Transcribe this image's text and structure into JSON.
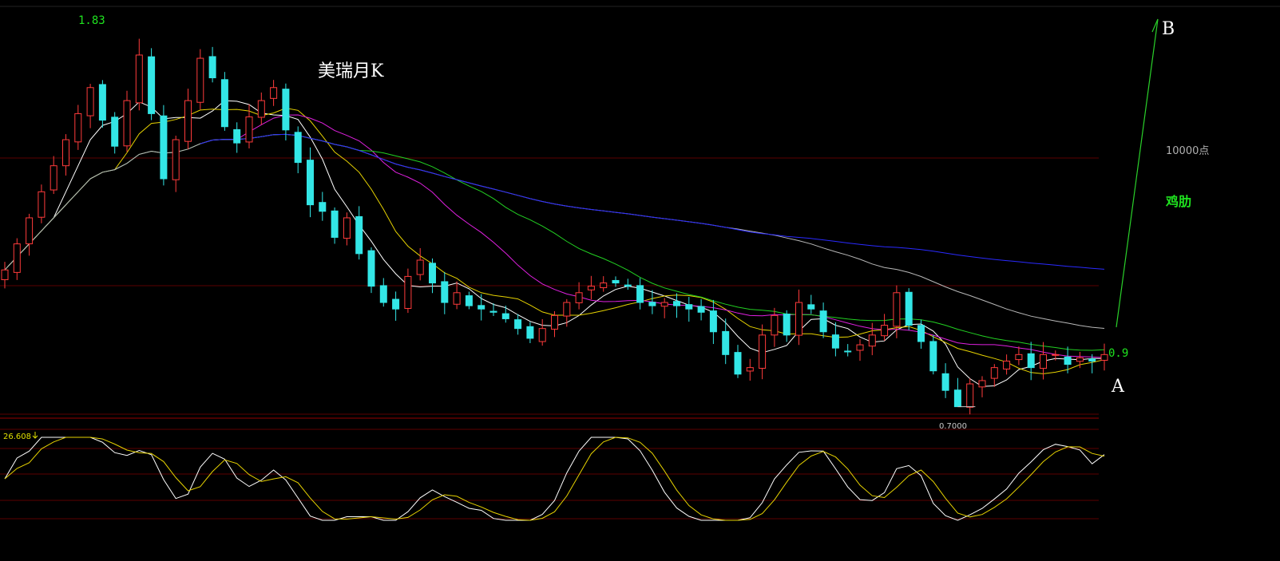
{
  "chart_data": {
    "type": "candlestick",
    "title": "美瑞月K",
    "y_range": [
      0.65,
      1.9
    ],
    "price_labels": {
      "high": "1.83",
      "low": "0.7000",
      "last": "0.9"
    },
    "annotations": {
      "point_a": "A",
      "point_b": "B",
      "level_text": "10000点",
      "note": "鸡肋"
    },
    "indicator": {
      "label": "26.608",
      "range": [
        0,
        100
      ]
    },
    "colors": {
      "up": "#ff3b3b",
      "down": "#33e6e6",
      "ma5": "#ffffff",
      "ma10": "#e6d200",
      "ma20": "#e020e0",
      "ma30": "#22d022",
      "ma60": "#b8b8b8",
      "ma120": "#2a2aff",
      "grid": "#7a0000",
      "k_line": "#ffffff",
      "d_line": "#e6d200",
      "trend": "#2ad12a"
    },
    "close": [
      1.12,
      1.2,
      1.28,
      1.36,
      1.44,
      1.52,
      1.6,
      1.68,
      1.58,
      1.5,
      1.64,
      1.78,
      1.6,
      1.4,
      1.52,
      1.64,
      1.77,
      1.71,
      1.56,
      1.51,
      1.59,
      1.64,
      1.68,
      1.55,
      1.45,
      1.32,
      1.3,
      1.22,
      1.28,
      1.17,
      1.07,
      1.02,
      1.0,
      1.1,
      1.15,
      1.08,
      1.02,
      1.05,
      1.01,
      1.0,
      0.99,
      0.97,
      0.94,
      0.91,
      0.94,
      0.98,
      1.02,
      1.05,
      1.07,
      1.08,
      1.08,
      1.07,
      1.02,
      1.01,
      1.02,
      1.01,
      1.0,
      0.99,
      0.93,
      0.86,
      0.8,
      0.82,
      0.92,
      0.98,
      0.92,
      1.02,
      1.0,
      0.93,
      0.88,
      0.87,
      0.89,
      0.92,
      0.95,
      1.05,
      0.95,
      0.9,
      0.81,
      0.75,
      0.7,
      0.77,
      0.78,
      0.82,
      0.84,
      0.86,
      0.82,
      0.86,
      0.86,
      0.83,
      0.85,
      0.84,
      0.86
    ]
  }
}
